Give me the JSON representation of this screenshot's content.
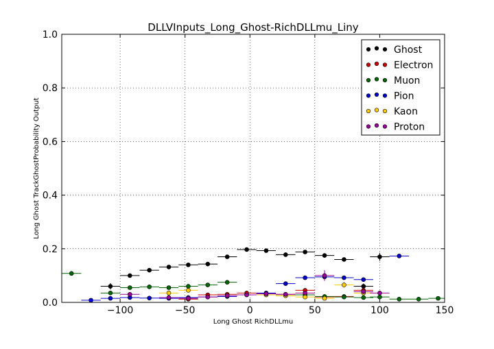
{
  "chart_data": {
    "type": "scatter",
    "title": "DLLVInputs_Long_Ghost-RichDLLmu_Liny",
    "xlabel": "Long Ghost RichDLLmu",
    "ylabel": "Long Ghost TrackGhostProbability Output",
    "xlim": [
      -145,
      150
    ],
    "ylim": [
      0.0,
      1.0
    ],
    "xticks": [
      -100,
      -50,
      0,
      50,
      100,
      150
    ],
    "xtick_labels": [
      "−100",
      "−50",
      "0",
      "50",
      "100",
      "150"
    ],
    "yticks": [
      0.0,
      0.2,
      0.4,
      0.6,
      0.8,
      1.0
    ],
    "ytick_labels": [
      "0.0",
      "0.2",
      "0.4",
      "0.6",
      "0.8",
      "1.0"
    ],
    "grid": true,
    "legend_position": "top-right",
    "x_error_half_width": 7.5,
    "series": [
      {
        "name": "Ghost",
        "color": "#000000",
        "points": [
          {
            "x": -107.5,
            "y": 0.06,
            "yerr": 0.012
          },
          {
            "x": -92.5,
            "y": 0.1,
            "yerr": 0.005
          },
          {
            "x": -77.5,
            "y": 0.12,
            "yerr": 0.004
          },
          {
            "x": -62.5,
            "y": 0.132,
            "yerr": 0.004
          },
          {
            "x": -47.5,
            "y": 0.14,
            "yerr": 0.004
          },
          {
            "x": -32.5,
            "y": 0.143,
            "yerr": 0.004
          },
          {
            "x": -17.5,
            "y": 0.17,
            "yerr": 0.004
          },
          {
            "x": -2.5,
            "y": 0.197,
            "yerr": 0.004
          },
          {
            "x": 12.5,
            "y": 0.193,
            "yerr": 0.004
          },
          {
            "x": 27.5,
            "y": 0.178,
            "yerr": 0.004
          },
          {
            "x": 42.5,
            "y": 0.188,
            "yerr": 0.004
          },
          {
            "x": 57.5,
            "y": 0.175,
            "yerr": 0.004
          },
          {
            "x": 72.5,
            "y": 0.16,
            "yerr": 0.005
          },
          {
            "x": 87.5,
            "y": 0.06,
            "yerr": 0.01
          },
          {
            "x": 100.0,
            "y": 0.17,
            "yerr": 0.015
          }
        ]
      },
      {
        "name": "Electron",
        "color": "#cc0000",
        "points": [
          {
            "x": -47.5,
            "y": 0.012,
            "yerr": 0.004
          },
          {
            "x": -32.5,
            "y": 0.028,
            "yerr": 0.004
          },
          {
            "x": -17.5,
            "y": 0.03,
            "yerr": 0.004
          },
          {
            "x": -2.5,
            "y": 0.035,
            "yerr": 0.004
          },
          {
            "x": 12.5,
            "y": 0.032,
            "yerr": 0.004
          },
          {
            "x": 27.5,
            "y": 0.03,
            "yerr": 0.004
          },
          {
            "x": 42.5,
            "y": 0.045,
            "yerr": 0.006
          },
          {
            "x": 57.5,
            "y": 0.02,
            "yerr": 0.005
          },
          {
            "x": 72.5,
            "y": 0.022,
            "yerr": 0.005
          },
          {
            "x": 87.5,
            "y": 0.045,
            "yerr": 0.008
          }
        ]
      },
      {
        "name": "Muon",
        "color": "#006600",
        "points": [
          {
            "x": -137.5,
            "y": 0.108,
            "yerr": 0.005
          },
          {
            "x": -107.5,
            "y": 0.035,
            "yerr": 0.004
          },
          {
            "x": -92.5,
            "y": 0.055,
            "yerr": 0.004
          },
          {
            "x": -77.5,
            "y": 0.058,
            "yerr": 0.004
          },
          {
            "x": -62.5,
            "y": 0.055,
            "yerr": 0.004
          },
          {
            "x": -47.5,
            "y": 0.06,
            "yerr": 0.004
          },
          {
            "x": -32.5,
            "y": 0.065,
            "yerr": 0.004
          },
          {
            "x": -17.5,
            "y": 0.075,
            "yerr": 0.004
          },
          {
            "x": 27.5,
            "y": 0.025,
            "yerr": 0.004
          },
          {
            "x": 42.5,
            "y": 0.028,
            "yerr": 0.004
          },
          {
            "x": 57.5,
            "y": 0.022,
            "yerr": 0.004
          },
          {
            "x": 72.5,
            "y": 0.02,
            "yerr": 0.004
          },
          {
            "x": 87.5,
            "y": 0.018,
            "yerr": 0.004
          },
          {
            "x": 100.0,
            "y": 0.02,
            "yerr": 0.004
          },
          {
            "x": 115.0,
            "y": 0.012,
            "yerr": 0.003
          },
          {
            "x": 130.0,
            "y": 0.012,
            "yerr": 0.003
          },
          {
            "x": 145.0,
            "y": 0.015,
            "yerr": 0.003
          }
        ]
      },
      {
        "name": "Pion",
        "color": "#0000cc",
        "points": [
          {
            "x": -122.5,
            "y": 0.008,
            "yerr": 0.003
          },
          {
            "x": -107.5,
            "y": 0.015,
            "yerr": 0.003
          },
          {
            "x": -92.5,
            "y": 0.018,
            "yerr": 0.003
          },
          {
            "x": -77.5,
            "y": 0.016,
            "yerr": 0.003
          },
          {
            "x": -62.5,
            "y": 0.015,
            "yerr": 0.003
          },
          {
            "x": -47.5,
            "y": 0.018,
            "yerr": 0.003
          },
          {
            "x": -32.5,
            "y": 0.02,
            "yerr": 0.003
          },
          {
            "x": -17.5,
            "y": 0.022,
            "yerr": 0.003
          },
          {
            "x": -2.5,
            "y": 0.028,
            "yerr": 0.003
          },
          {
            "x": 12.5,
            "y": 0.035,
            "yerr": 0.003
          },
          {
            "x": 27.5,
            "y": 0.07,
            "yerr": 0.004
          },
          {
            "x": 42.5,
            "y": 0.092,
            "yerr": 0.004
          },
          {
            "x": 57.5,
            "y": 0.095,
            "yerr": 0.005
          },
          {
            "x": 72.5,
            "y": 0.092,
            "yerr": 0.006
          },
          {
            "x": 87.5,
            "y": 0.085,
            "yerr": 0.008
          },
          {
            "x": 115.0,
            "y": 0.173,
            "yerr": 0.005
          }
        ]
      },
      {
        "name": "Kaon",
        "color": "#ffcc00",
        "points": [
          {
            "x": -62.5,
            "y": 0.035,
            "yerr": 0.008
          },
          {
            "x": -47.5,
            "y": 0.045,
            "yerr": 0.008
          },
          {
            "x": 12.5,
            "y": 0.028,
            "yerr": 0.004
          },
          {
            "x": 27.5,
            "y": 0.025,
            "yerr": 0.004
          },
          {
            "x": 42.5,
            "y": 0.02,
            "yerr": 0.004
          },
          {
            "x": 57.5,
            "y": 0.015,
            "yerr": 0.004
          },
          {
            "x": 72.5,
            "y": 0.065,
            "yerr": 0.012
          },
          {
            "x": 87.5,
            "y": 0.035,
            "yerr": 0.01
          }
        ]
      },
      {
        "name": "Proton",
        "color": "#990099",
        "points": [
          {
            "x": -92.5,
            "y": 0.03,
            "yerr": 0.004
          },
          {
            "x": -62.5,
            "y": 0.018,
            "yerr": 0.004
          },
          {
            "x": -47.5,
            "y": 0.015,
            "yerr": 0.006
          },
          {
            "x": -32.5,
            "y": 0.02,
            "yerr": 0.004
          },
          {
            "x": -17.5,
            "y": 0.025,
            "yerr": 0.004
          },
          {
            "x": -2.5,
            "y": 0.028,
            "yerr": 0.004
          },
          {
            "x": 12.5,
            "y": 0.032,
            "yerr": 0.004
          },
          {
            "x": 27.5,
            "y": 0.03,
            "yerr": 0.004
          },
          {
            "x": 42.5,
            "y": 0.035,
            "yerr": 0.005
          },
          {
            "x": 57.5,
            "y": 0.1,
            "yerr": 0.02
          },
          {
            "x": 87.5,
            "y": 0.04,
            "yerr": 0.008
          },
          {
            "x": 100.0,
            "y": 0.035,
            "yerr": 0.008
          }
        ]
      }
    ]
  }
}
